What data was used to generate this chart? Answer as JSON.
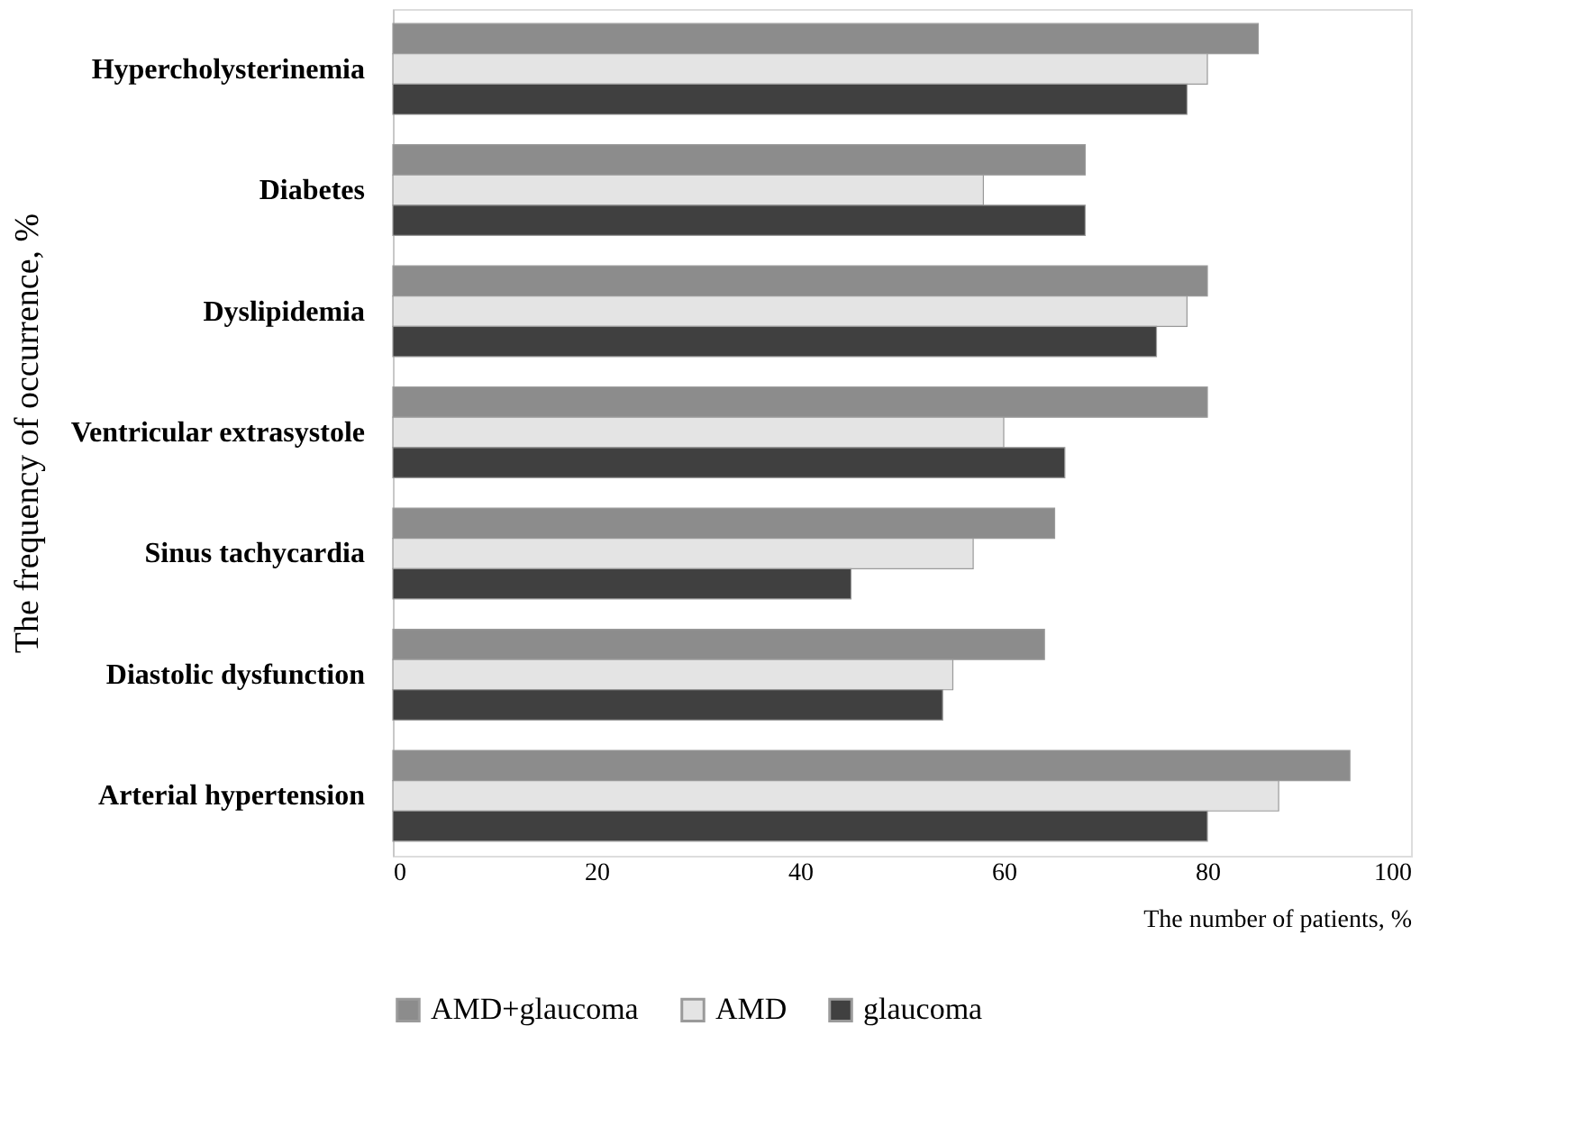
{
  "chart_data": {
    "type": "bar",
    "orientation": "horizontal",
    "xlabel": "The number of patients, %",
    "ylabel": "The frequency of occurrence, %",
    "categories": [
      "Hypercholysterinemia",
      "Diabetes",
      "Dyslipidemia",
      "Ventricular extrasystole",
      "Sinus tachycardia",
      "Diastolic dysfunction",
      "Arterial hypertension"
    ],
    "series": [
      {
        "name": "AMD+glaucoma",
        "color": "#8c8c8c",
        "values": [
          85,
          68,
          80,
          80,
          65,
          64,
          94
        ]
      },
      {
        "name": "AMD",
        "color": "#e4e4e4",
        "values": [
          80,
          58,
          78,
          60,
          57,
          55,
          87
        ]
      },
      {
        "name": "glaucoma",
        "color": "#404040",
        "values": [
          78,
          68,
          75,
          66,
          45,
          54,
          80
        ]
      }
    ],
    "xlim": [
      0,
      100
    ],
    "xticks": [
      0,
      20,
      40,
      60,
      80,
      100
    ],
    "grid": false,
    "legend": "bottom"
  }
}
